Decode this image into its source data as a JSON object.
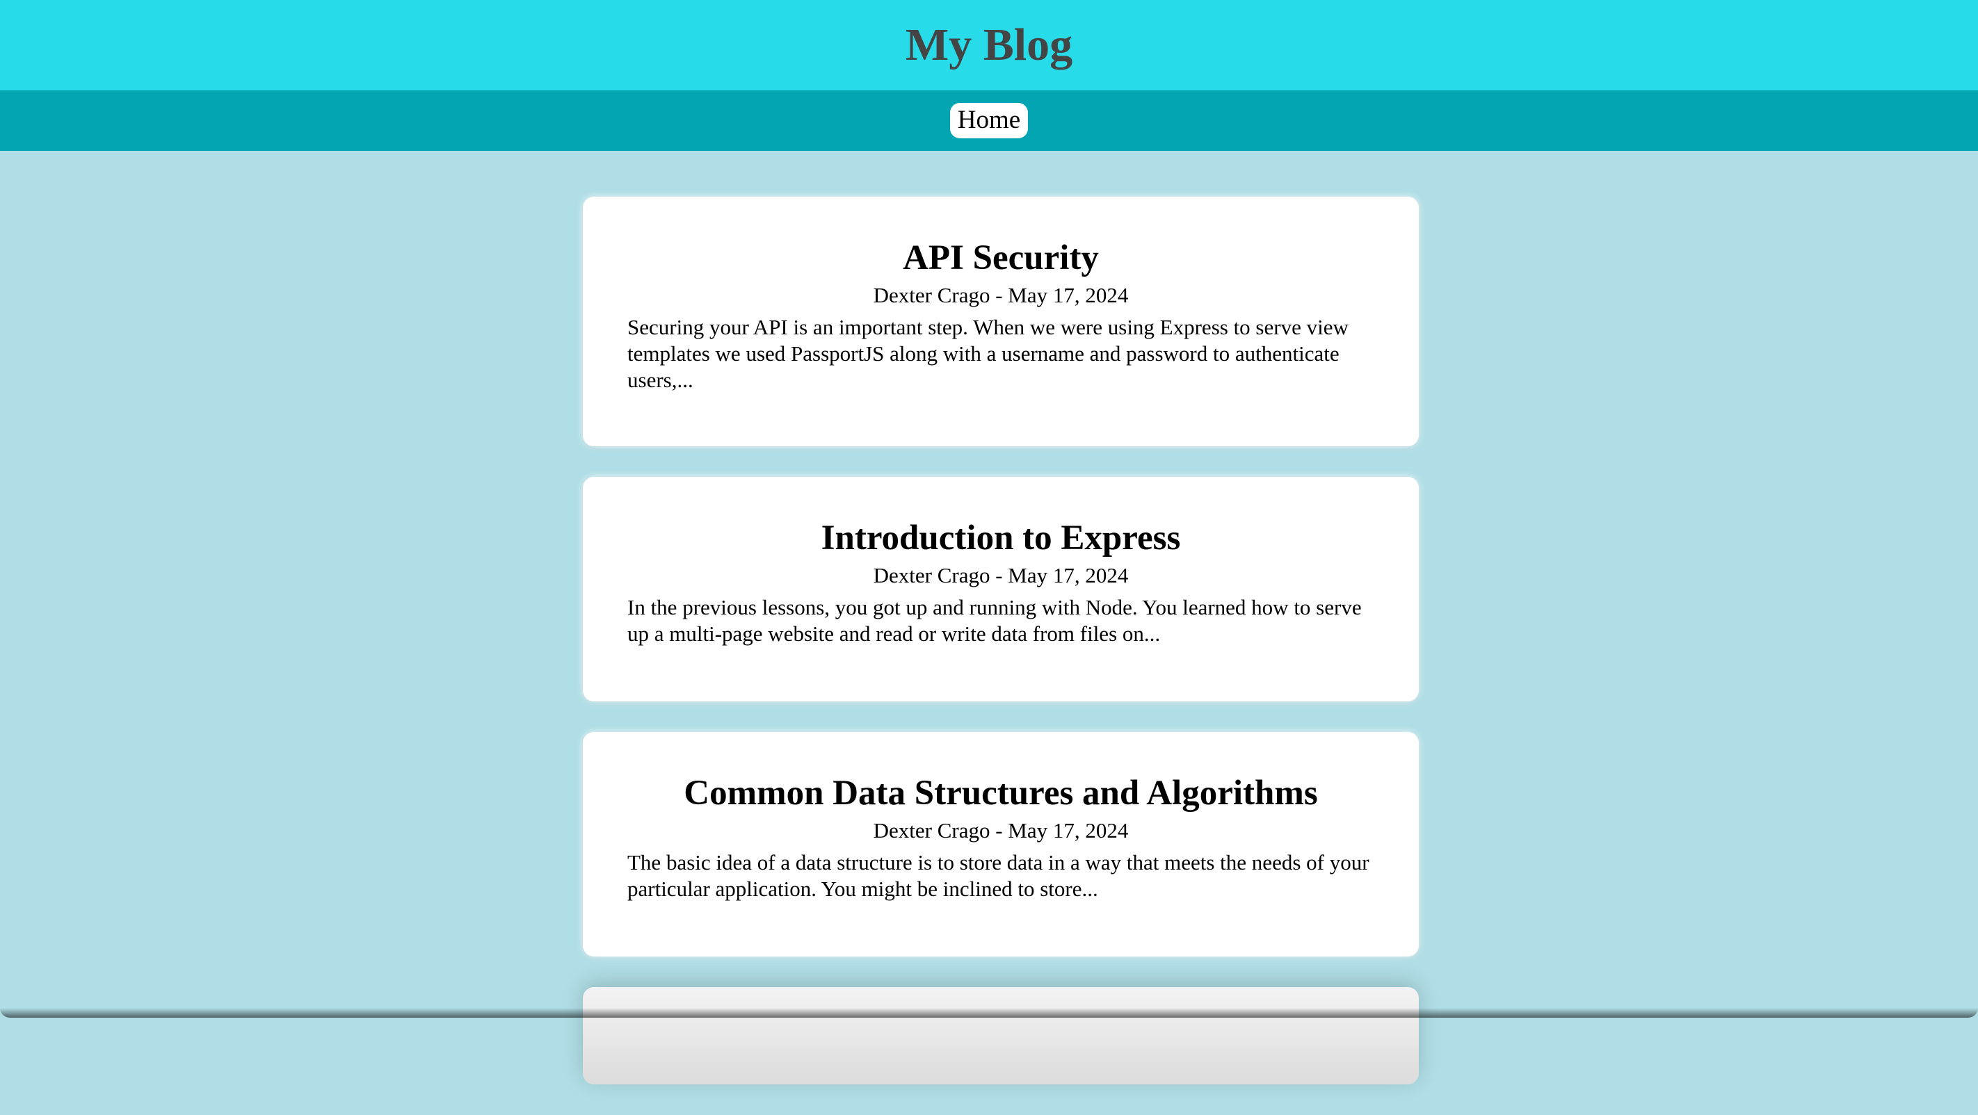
{
  "header": {
    "title": "My Blog"
  },
  "nav": {
    "items": [
      {
        "label": "Home"
      }
    ]
  },
  "posts": [
    {
      "title": "API Security",
      "meta": "Dexter Crago - May 17, 2024",
      "excerpt": "Securing your API is an important step. When we were using Express to serve view templates we used PassportJS along with a username and password to authenticate users,..."
    },
    {
      "title": "Introduction to Express",
      "meta": "Dexter Crago - May 17, 2024",
      "excerpt": "In the previous lessons, you got up and running with Node. You learned how to serve up a multi-page website and read or write data from files on..."
    },
    {
      "title": "Common Data Structures and Algorithms",
      "meta": "Dexter Crago - May 17, 2024",
      "excerpt": "The basic idea of a data structure is to store data in a way that meets the needs of your particular application. You might be inclined to store..."
    }
  ],
  "colors": {
    "header_bg": "#27dbe9",
    "nav_bg": "#03a5b3",
    "page_bg": "#b0dee6",
    "title_text": "#444444",
    "card_bg": "#ffffff"
  }
}
